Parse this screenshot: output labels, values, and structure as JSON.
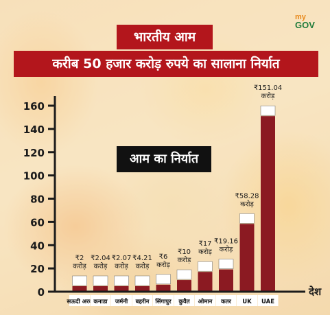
{
  "brand": {
    "my": "my",
    "gov": "GOV"
  },
  "header": {
    "title": "भारतीय आम",
    "subtitle": "करीब 50 हजार करोड़ रुपये का सालाना निर्यात"
  },
  "chart_data": {
    "type": "bar",
    "title": "आम का निर्यात",
    "xlabel": "देश",
    "ylabel": "",
    "ylim": [
      0,
      160
    ],
    "yticks": [
      0,
      20,
      40,
      60,
      80,
      100,
      120,
      140,
      160
    ],
    "categories": [
      "सऊदी अरब",
      "कनाडा",
      "जर्मनी",
      "बहरीन",
      "सिंगापुर",
      "कुवैत",
      "ओमान",
      "कतर",
      "UK",
      "UAE"
    ],
    "values": [
      2,
      2.04,
      2.07,
      4.21,
      6,
      10,
      17,
      19.16,
      58.28,
      151.04
    ],
    "labels": [
      "₹2 करोड़",
      "₹2.04 करोड़",
      "₹2.07 करोड़",
      "₹4.21 करोड़",
      "₹6 करोड़",
      "₹10 करोड़",
      "₹17 करोड़",
      "₹19.16 करोड़",
      "₹58.28 करोड़",
      "₹151.04 करोड़"
    ],
    "bar_color": "#8b1a22",
    "axis_color": "#1b1b1b"
  }
}
